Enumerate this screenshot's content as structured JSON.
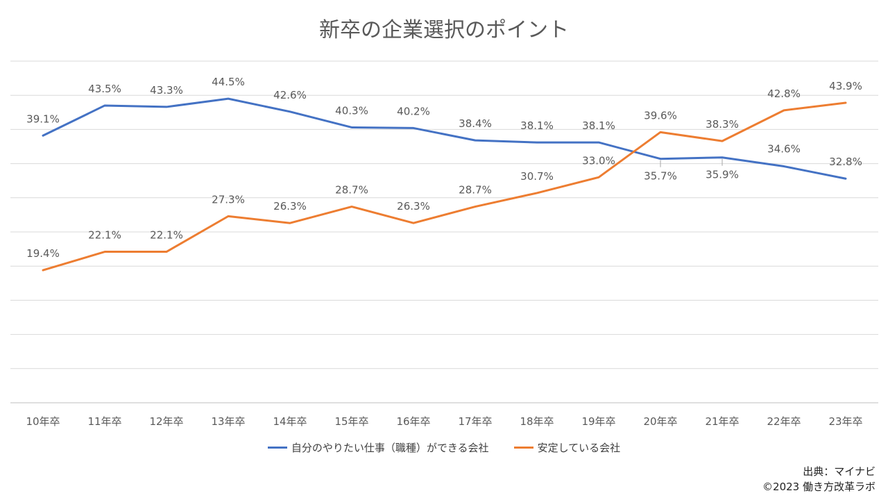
{
  "chart_data": {
    "type": "line",
    "title": "新卒の企業選択のポイント",
    "categories": [
      "10年卒",
      "11年卒",
      "12年卒",
      "13年卒",
      "14年卒",
      "15年卒",
      "16年卒",
      "17年卒",
      "18年卒",
      "19年卒",
      "20年卒",
      "21年卒",
      "22年卒",
      "23年卒"
    ],
    "series": [
      {
        "name": "自分のやりたい仕事（職種）ができる会社",
        "color": "#4472C4",
        "values": [
          39.1,
          43.5,
          43.3,
          44.5,
          42.6,
          40.3,
          40.2,
          38.4,
          38.1,
          38.1,
          35.7,
          35.9,
          34.6,
          32.8
        ],
        "labels": [
          "39.1%",
          "43.5%",
          "43.3%",
          "44.5%",
          "42.6%",
          "40.3%",
          "40.2%",
          "38.4%",
          "38.1%",
          "38.1%",
          "35.7%",
          "35.9%",
          "34.6%",
          "32.8%"
        ]
      },
      {
        "name": "安定している会社",
        "color": "#ED7D31",
        "values": [
          19.4,
          22.1,
          22.1,
          27.3,
          26.3,
          28.7,
          26.3,
          28.7,
          30.7,
          33.0,
          39.6,
          38.3,
          42.8,
          43.9
        ],
        "labels": [
          "19.4%",
          "22.1%",
          "22.1%",
          "27.3%",
          "26.3%",
          "28.7%",
          "26.3%",
          "28.7%",
          "30.7%",
          "33.0%",
          "39.6%",
          "38.3%",
          "42.8%",
          "43.9%"
        ]
      }
    ],
    "ylim": [
      0,
      50
    ],
    "y_gridlines": [
      0,
      5,
      10,
      15,
      20,
      25,
      30,
      35,
      40,
      45,
      50
    ],
    "grid": true,
    "xlabel": "",
    "ylabel": "",
    "legend": "bottom"
  },
  "source": {
    "line1": "出典：マイナビ",
    "line2": "©2023 働き方改革ラボ"
  }
}
